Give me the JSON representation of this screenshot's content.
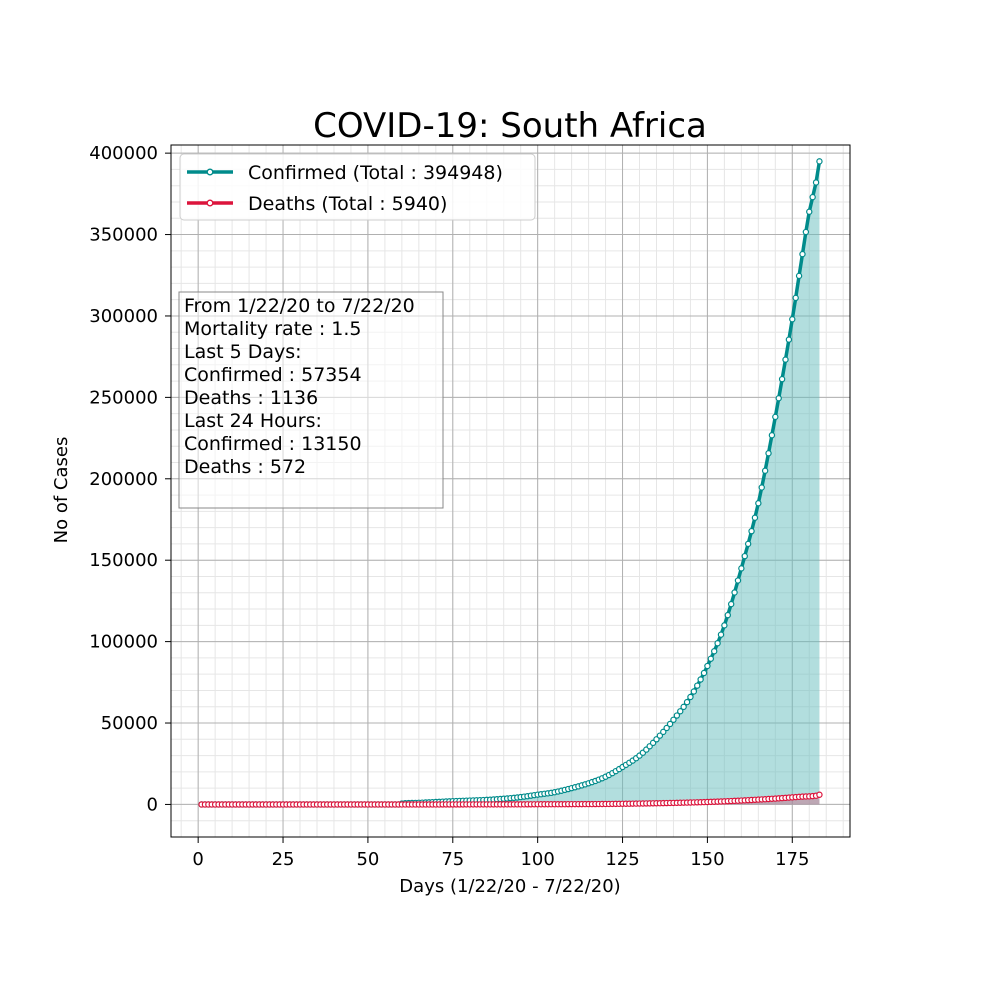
{
  "chart_data": {
    "type": "line",
    "title": "COVID-19: South Africa",
    "xlabel": "Days (1/22/20 - 7/22/20)",
    "ylabel": "No of Cases",
    "xlim": [
      -8,
      192
    ],
    "ylim": [
      -20000,
      405000
    ],
    "x_ticks": [
      0,
      25,
      50,
      75,
      100,
      125,
      150,
      175
    ],
    "y_ticks": [
      0,
      50000,
      100000,
      150000,
      200000,
      250000,
      300000,
      350000,
      400000
    ],
    "x_tick_labels": [
      "0",
      "25",
      "50",
      "75",
      "100",
      "125",
      "150",
      "175"
    ],
    "y_tick_labels": [
      "0",
      "50000",
      "100000",
      "150000",
      "200000",
      "250000",
      "300000",
      "350000",
      "400000"
    ],
    "grid": true,
    "legend_position": "top-left",
    "series": [
      {
        "name": "Confirmed (Total : 394948)",
        "color": "#008b8b",
        "fill_color": "#66bebe",
        "points": [
          [
            1,
            0
          ],
          [
            59,
            0
          ],
          [
            60,
            500
          ],
          [
            65,
            1000
          ],
          [
            70,
            1500
          ],
          [
            75,
            2000
          ],
          [
            80,
            2400
          ],
          [
            85,
            2800
          ],
          [
            90,
            3500
          ],
          [
            95,
            4500
          ],
          [
            100,
            6000
          ],
          [
            105,
            7500
          ],
          [
            110,
            10000
          ],
          [
            115,
            13000
          ],
          [
            120,
            17000
          ],
          [
            125,
            23000
          ],
          [
            130,
            30000
          ],
          [
            135,
            40000
          ],
          [
            140,
            52000
          ],
          [
            145,
            66000
          ],
          [
            150,
            85000
          ],
          [
            155,
            110000
          ],
          [
            160,
            145000
          ],
          [
            165,
            185000
          ],
          [
            170,
            238000
          ],
          [
            175,
            298000
          ],
          [
            178,
            338000
          ],
          [
            180,
            364000
          ],
          [
            182,
            382000
          ],
          [
            183,
            394948
          ]
        ]
      },
      {
        "name": "Deaths (Total : 5940)",
        "color": "#dc143c",
        "fill_color": "#c7708a",
        "points": [
          [
            1,
            0
          ],
          [
            70,
            0
          ],
          [
            100,
            100
          ],
          [
            125,
            400
          ],
          [
            150,
            1500
          ],
          [
            160,
            2400
          ],
          [
            170,
            3600
          ],
          [
            178,
            4800
          ],
          [
            182,
            5368
          ],
          [
            183,
            5940
          ]
        ]
      }
    ],
    "annotation": {
      "lines": [
        "From 1/22/20 to 7/22/20",
        "Mortality rate : 1.5",
        "Last 5 Days:",
        "Confirmed : 57354",
        "Deaths : 1136",
        "Last 24 Hours:",
        "Confirmed : 13150",
        "Deaths : 572"
      ]
    }
  }
}
